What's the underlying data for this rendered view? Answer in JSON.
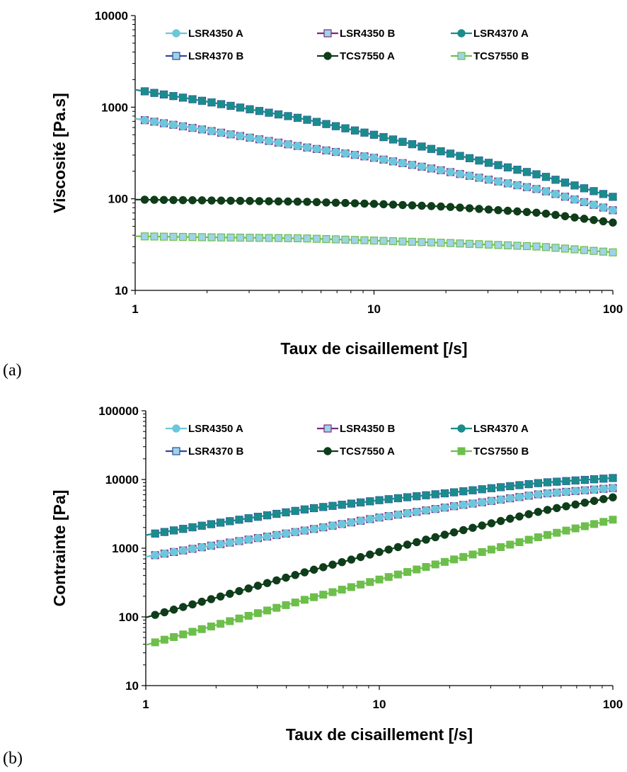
{
  "panels": [
    {
      "label": "(a)"
    },
    {
      "label": "(b)"
    }
  ],
  "chart_data": [
    {
      "type": "line",
      "xscale": "log",
      "yscale": "log",
      "xlim": [
        1,
        100
      ],
      "ylim": [
        10,
        10000
      ],
      "xticks": [
        "1",
        "10",
        "100"
      ],
      "yticks": [
        "10",
        "100",
        "1000",
        "10000"
      ],
      "xlabel": "Taux de cisaillement [/s]",
      "ylabel": "Viscosité [Pa.s]",
      "legend": "top, 3 columns",
      "series": [
        {
          "name": "LSR4350 A",
          "color": "#6cc7dc",
          "marker": "circle-filled",
          "x": [
            1,
            2,
            5,
            10,
            20,
            50,
            100
          ],
          "y": [
            750,
            560,
            370,
            280,
            200,
            125,
            75
          ]
        },
        {
          "name": "LSR4350 B",
          "color": "#7b2a7f",
          "marker": "square-open",
          "x": [
            1,
            2,
            5,
            10,
            20,
            50,
            100
          ],
          "y": [
            750,
            560,
            370,
            280,
            200,
            125,
            75
          ]
        },
        {
          "name": "LSR4370 A",
          "color": "#1a8c8c",
          "marker": "circle-filled",
          "x": [
            1,
            2,
            5,
            10,
            20,
            50,
            100
          ],
          "y": [
            1550,
            1150,
            750,
            500,
            320,
            180,
            105
          ]
        },
        {
          "name": "LSR4370 B",
          "color": "#2e4a9a",
          "marker": "square-open",
          "x": [
            1,
            2,
            5,
            10,
            20,
            50,
            100
          ],
          "y": [
            1550,
            1150,
            750,
            500,
            320,
            180,
            105
          ]
        },
        {
          "name": "TCS7550 A",
          "color": "#0f3d1a",
          "marker": "circle-filled",
          "x": [
            1,
            2,
            5,
            10,
            20,
            50,
            100
          ],
          "y": [
            98,
            96,
            93,
            88,
            82,
            70,
            55
          ]
        },
        {
          "name": "TCS7550 B",
          "color": "#6dbf4b",
          "marker": "square-open",
          "x": [
            1,
            2,
            5,
            10,
            20,
            50,
            100
          ],
          "y": [
            39,
            38,
            37,
            35,
            33,
            30,
            26
          ]
        }
      ]
    },
    {
      "type": "line",
      "xscale": "log",
      "yscale": "log",
      "xlim": [
        1,
        100
      ],
      "ylim": [
        10,
        100000
      ],
      "xticks": [
        "1",
        "10",
        "100"
      ],
      "yticks": [
        "10",
        "100",
        "1000",
        "10000",
        "100000"
      ],
      "xlabel": "Taux de cisaillement [/s]",
      "ylabel": "Contrainte [Pa]",
      "legend": "top, 3 columns",
      "series": [
        {
          "name": "LSR4350 A",
          "color": "#6cc7dc",
          "marker": "circle-filled",
          "x": [
            1,
            2,
            5,
            10,
            20,
            50,
            100
          ],
          "y": [
            750,
            1120,
            1850,
            2800,
            4000,
            6200,
            7500
          ]
        },
        {
          "name": "LSR4350 B",
          "color": "#7b2a7f",
          "marker": "square-open",
          "x": [
            1,
            2,
            5,
            10,
            20,
            50,
            100
          ],
          "y": [
            750,
            1120,
            1850,
            2800,
            4000,
            6200,
            7500
          ]
        },
        {
          "name": "LSR4370 A",
          "color": "#1a8c8c",
          "marker": "circle-filled",
          "x": [
            1,
            2,
            5,
            10,
            20,
            50,
            100
          ],
          "y": [
            1550,
            2300,
            3750,
            5000,
            6400,
            9000,
            10500
          ]
        },
        {
          "name": "LSR4370 B",
          "color": "#2e4a9a",
          "marker": "square-open",
          "x": [
            1,
            2,
            5,
            10,
            20,
            50,
            100
          ],
          "y": [
            1550,
            2300,
            3750,
            5000,
            6400,
            9000,
            10500
          ]
        },
        {
          "name": "TCS7550 A",
          "color": "#0f3d1a",
          "marker": "circle-filled",
          "x": [
            1,
            2,
            5,
            10,
            20,
            50,
            100
          ],
          "y": [
            98,
            190,
            465,
            880,
            1640,
            3500,
            5500
          ]
        },
        {
          "name": "TCS7550 B",
          "color": "#6dbf4b",
          "marker": "square-filled",
          "x": [
            1,
            2,
            5,
            10,
            20,
            50,
            100
          ],
          "y": [
            39,
            76,
            185,
            350,
            660,
            1500,
            2600
          ]
        }
      ]
    }
  ]
}
